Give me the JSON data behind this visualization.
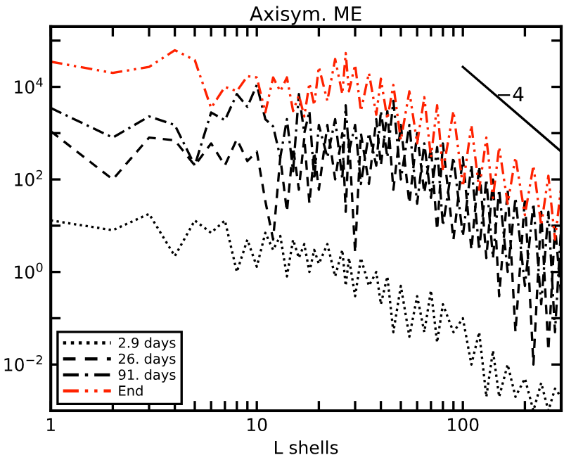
{
  "chart_data": {
    "type": "line",
    "title": "Axisym. ME",
    "xlabel": "L shells",
    "log": "xy",
    "legend": "bottom left",
    "grid": false,
    "xlim": [
      1,
      300
    ],
    "ylim": [
      0.001,
      200000
    ],
    "xticks": [
      1,
      {
        "value": 2,
        "label": null
      },
      {
        "value": 3,
        "label": null
      },
      {
        "value": 4,
        "label": null
      },
      {
        "value": 5,
        "label": null
      },
      {
        "value": 6,
        "label": null
      },
      {
        "value": 7,
        "label": null
      },
      {
        "value": 8,
        "label": null
      },
      {
        "value": 9,
        "label": null
      },
      10,
      {
        "value": 20,
        "label": null
      },
      {
        "value": 30,
        "label": null
      },
      {
        "value": 40,
        "label": null
      },
      {
        "value": 50,
        "label": null
      },
      {
        "value": 60,
        "label": null
      },
      {
        "value": 70,
        "label": null
      },
      {
        "value": 80,
        "label": null
      },
      {
        "value": 90,
        "label": null
      },
      100,
      {
        "value": 200,
        "label": null
      },
      {
        "value": 300,
        "label": null
      }
    ],
    "yticks": [
      {
        "value": 0.001,
        "label": null
      },
      {
        "value": 0.01,
        "label": "10$^{−2}$"
      },
      {
        "value": 0.1,
        "label": null
      },
      {
        "value": 1,
        "label": "10$^{0}$"
      },
      {
        "value": 10,
        "label": null
      },
      {
        "value": 100,
        "label": "10$^{2}$"
      },
      {
        "value": 1000,
        "label": null
      },
      {
        "value": 10000,
        "label": "10$^{4}$"
      },
      {
        "value": 100000,
        "label": null
      }
    ],
    "x": [
      1,
      2,
      3,
      4,
      5,
      6,
      7,
      8,
      9,
      10,
      11,
      12,
      13,
      14,
      15,
      16,
      17,
      18,
      19,
      20,
      22,
      24,
      26,
      27,
      28,
      30,
      32,
      35,
      38,
      40,
      43,
      46,
      50,
      55,
      60,
      65,
      70,
      75,
      80,
      90,
      100,
      110,
      120,
      130,
      140,
      150,
      165,
      180,
      200,
      220,
      240,
      260,
      280,
      300
    ],
    "series": [
      {
        "name": "2.9 days",
        "color": "#000000",
        "line_style": "dotted",
        "values": [
          13,
          8,
          18,
          2.2,
          13,
          7,
          13,
          1,
          5,
          1.3,
          7,
          3,
          6,
          0.8,
          5,
          2,
          4,
          1,
          3,
          1.5,
          4,
          0.8,
          3,
          0.5,
          2,
          0.3,
          2,
          0.5,
          1,
          0.2,
          0.8,
          0.05,
          0.5,
          0.04,
          0.3,
          0.05,
          0.4,
          0.03,
          0.2,
          0.05,
          0.1,
          0.01,
          0.05,
          0.002,
          0.02,
          0.002,
          0.01,
          0.002,
          0.005,
          0.001,
          0.004,
          0.001,
          0.003,
          0.002
        ]
      },
      {
        "name": "26. days",
        "color": "#000000",
        "line_style": "dashed",
        "values": [
          1100,
          100,
          800,
          700,
          200,
          600,
          200,
          740,
          250,
          400,
          34,
          5,
          300,
          20,
          500,
          60,
          800,
          30,
          400,
          60,
          1500,
          100,
          1000,
          20,
          800,
          2.6,
          1000,
          80,
          2000,
          200,
          3000,
          60,
          1500,
          30,
          1000,
          50,
          500,
          8,
          600,
          5,
          300,
          3,
          200,
          2,
          100,
          0.3,
          60,
          0.05,
          40,
          0.01,
          20,
          0.02,
          10,
          0.3
        ]
      },
      {
        "name": "91. days",
        "color": "#000000",
        "line_style": "dashdot",
        "values": [
          3500,
          800,
          2300,
          1500,
          200,
          2800,
          1900,
          7000,
          3700,
          11000,
          2000,
          1400,
          300,
          2000,
          150,
          7000,
          1000,
          3000,
          100,
          1500,
          300,
          2000,
          100,
          4000,
          400,
          1500,
          80,
          1000,
          200,
          3000,
          300,
          5000,
          100,
          1500,
          30,
          600,
          40,
          500,
          10,
          300,
          6,
          200,
          3,
          100,
          2,
          60,
          1,
          40,
          0.5,
          30,
          0.2,
          20,
          0.05,
          10
        ]
      },
      {
        "name": "End",
        "color": "#ff2200",
        "line_style": "dashdotdot",
        "values": [
          35000,
          20000,
          27000,
          62000,
          38000,
          3500,
          10000,
          8100,
          17000,
          16000,
          2800,
          16000,
          8000,
          16000,
          3000,
          6600,
          2300,
          12000,
          4000,
          27000,
          5000,
          40000,
          7000,
          54000,
          8000,
          30000,
          3000,
          20000,
          2500,
          15000,
          2000,
          11000,
          700,
          8000,
          600,
          6000,
          300,
          4000,
          150,
          3000,
          70,
          1500,
          60,
          800,
          40,
          500,
          30,
          300,
          17,
          200,
          10,
          120,
          5,
          70
        ]
      },
      {
        "color": "#000000",
        "line_style": "solid",
        "x": [
          100,
          300
        ],
        "values": [
          27000,
          400
        ]
      }
    ],
    "annotations": [
      "−4"
    ]
  }
}
